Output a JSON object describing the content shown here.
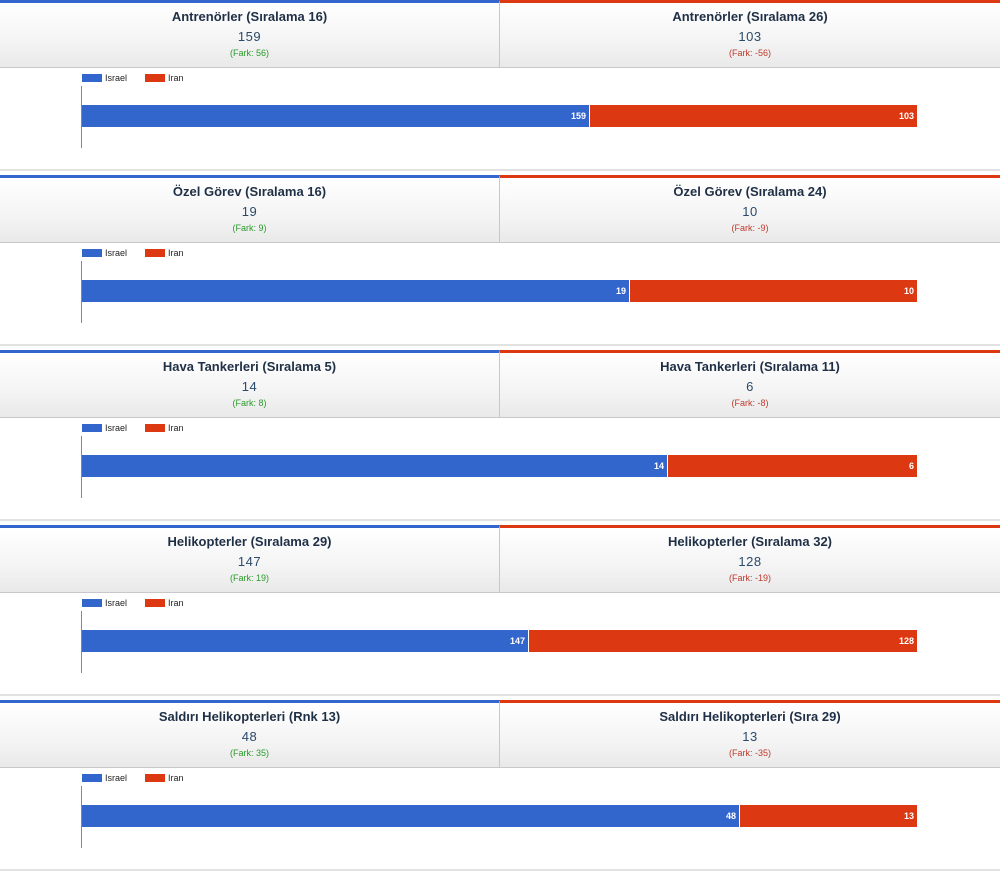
{
  "colors": {
    "israel": "#3366cc",
    "iran": "#dc3912"
  },
  "legend": {
    "israel": "Israel",
    "iran": "Iran"
  },
  "blocks": [
    {
      "left": {
        "title": "Antrenörler (Sıralama 16)",
        "value": "159",
        "diff": "(Fark: 56)"
      },
      "right": {
        "title": "Antrenörler (Sıralama 26)",
        "value": "103",
        "diff": "(Fark: -56)"
      }
    },
    {
      "left": {
        "title": "Özel Görev (Sıralama 16)",
        "value": "19",
        "diff": "(Fark: 9)"
      },
      "right": {
        "title": "Özel Görev (Sıralama 24)",
        "value": "10",
        "diff": "(Fark: -9)"
      }
    },
    {
      "left": {
        "title": "Hava Tankerleri (Sıralama 5)",
        "value": "14",
        "diff": "(Fark: 8)"
      },
      "right": {
        "title": "Hava Tankerleri (Sıralama 11)",
        "value": "6",
        "diff": "(Fark: -8)"
      }
    },
    {
      "left": {
        "title": "Helikopterler (Sıralama 29)",
        "value": "147",
        "diff": "(Fark: 19)"
      },
      "right": {
        "title": "Helikopterler (Sıralama 32)",
        "value": "128",
        "diff": "(Fark: -19)"
      }
    },
    {
      "left": {
        "title": "Saldırı Helikopterleri (Rnk 13)",
        "value": "48",
        "diff": "(Fark: 35)"
      },
      "right": {
        "title": "Saldırı Helikopterleri (Sıra 29)",
        "value": "13",
        "diff": "(Fark: -35)"
      }
    }
  ],
  "chart_data": [
    {
      "type": "bar",
      "stacked": true,
      "orientation": "horizontal",
      "normalized": true,
      "legend_position": "top-left",
      "series": [
        {
          "name": "Israel",
          "values": [
            159
          ]
        },
        {
          "name": "Iran",
          "values": [
            103
          ]
        }
      ]
    },
    {
      "type": "bar",
      "stacked": true,
      "orientation": "horizontal",
      "normalized": true,
      "legend_position": "top-left",
      "series": [
        {
          "name": "Israel",
          "values": [
            19
          ]
        },
        {
          "name": "Iran",
          "values": [
            10
          ]
        }
      ]
    },
    {
      "type": "bar",
      "stacked": true,
      "orientation": "horizontal",
      "normalized": true,
      "legend_position": "top-left",
      "series": [
        {
          "name": "Israel",
          "values": [
            14
          ]
        },
        {
          "name": "Iran",
          "values": [
            6
          ]
        }
      ]
    },
    {
      "type": "bar",
      "stacked": true,
      "orientation": "horizontal",
      "normalized": true,
      "legend_position": "top-left",
      "series": [
        {
          "name": "Israel",
          "values": [
            147
          ]
        },
        {
          "name": "Iran",
          "values": [
            128
          ]
        }
      ]
    },
    {
      "type": "bar",
      "stacked": true,
      "orientation": "horizontal",
      "normalized": true,
      "legend_position": "top-left",
      "series": [
        {
          "name": "Israel",
          "values": [
            48
          ]
        },
        {
          "name": "Iran",
          "values": [
            13
          ]
        }
      ]
    }
  ]
}
